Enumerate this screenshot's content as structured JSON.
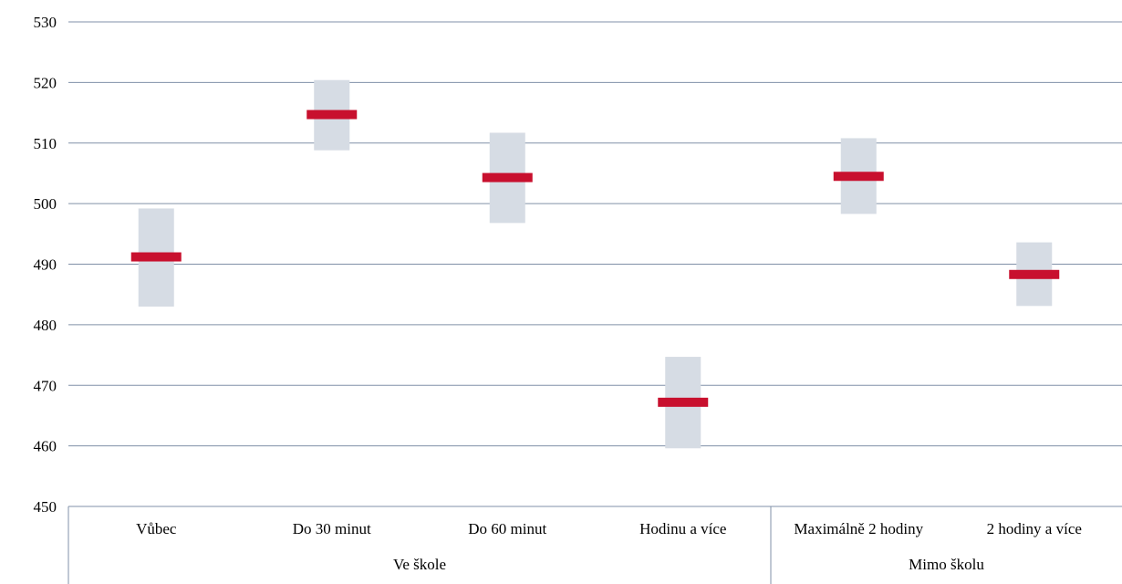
{
  "chart_data": {
    "type": "range-bar",
    "ylim": [
      450,
      530
    ],
    "yticks": [
      450,
      460,
      470,
      480,
      490,
      500,
      510,
      520,
      530
    ],
    "grid": true,
    "groups": [
      {
        "name": "Ve škole",
        "categories": [
          "Vůbec",
          "Do 30 minut",
          "Do 60 minut",
          "Hodinu a více"
        ]
      },
      {
        "name": "Mimo školu",
        "categories": [
          "Maximálně 2 hodiny",
          "2 hodiny a více"
        ]
      }
    ],
    "categories": [
      "Vůbec",
      "Do 30 minut",
      "Do 60 minut",
      "Hodinu a více",
      "Maximálně 2 hodiny",
      "2 hodiny a více"
    ],
    "mean": [
      491.2,
      514.7,
      504.3,
      467.2,
      504.5,
      488.3
    ],
    "lower": [
      483.0,
      508.8,
      496.8,
      459.6,
      498.3,
      483.1
    ],
    "upper": [
      499.2,
      520.4,
      511.7,
      474.7,
      510.8,
      493.6
    ]
  },
  "colors": {
    "mean_marker": "#c8102e",
    "interval": "#d6dce4",
    "grid": "#8090a8",
    "axis": "#8090a8"
  }
}
